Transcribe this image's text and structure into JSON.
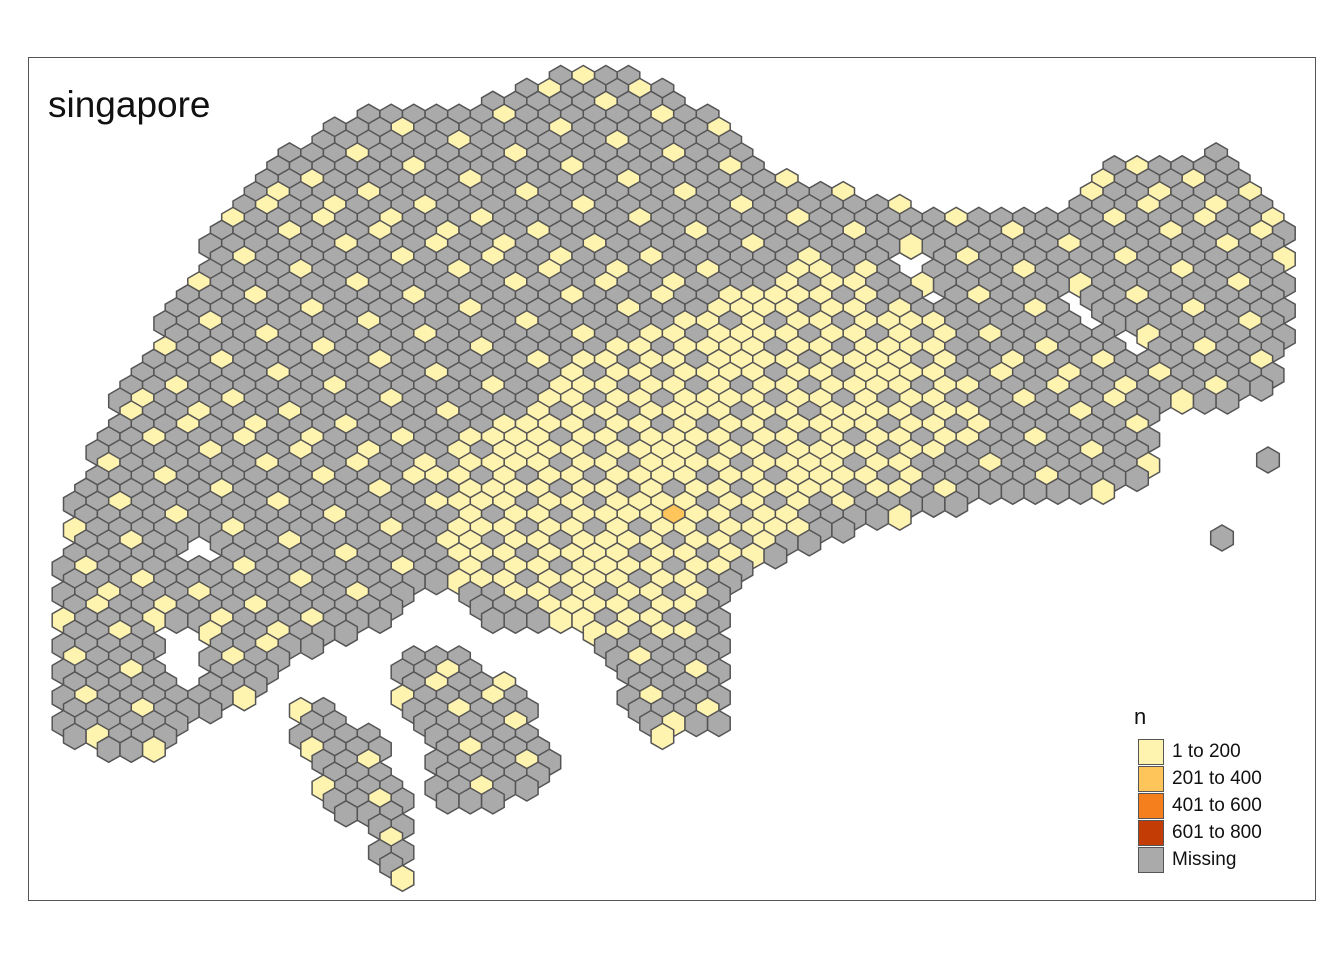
{
  "title": "singapore",
  "legend": {
    "title": "n",
    "items": [
      {
        "label": "1 to 200",
        "color": "#fff3b0"
      },
      {
        "label": "201 to 400",
        "color": "#fec55a"
      },
      {
        "label": "401 to 600",
        "color": "#f57f1c"
      },
      {
        "label": "601 to 800",
        "color": "#c43c05"
      },
      {
        "label": "Missing",
        "color": "#aaaaaa"
      }
    ]
  },
  "map_style": {
    "hex_stroke": "#555555",
    "missing_color": "#aaaaaa"
  }
}
